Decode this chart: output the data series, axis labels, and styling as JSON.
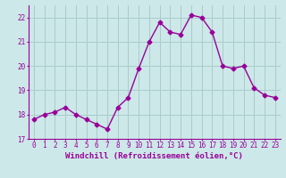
{
  "x": [
    0,
    1,
    2,
    3,
    4,
    5,
    6,
    7,
    8,
    9,
    10,
    11,
    12,
    13,
    14,
    15,
    16,
    17,
    18,
    19,
    20,
    21,
    22,
    23
  ],
  "y": [
    17.8,
    18.0,
    18.1,
    18.3,
    18.0,
    17.8,
    17.6,
    17.4,
    18.3,
    18.7,
    19.9,
    21.0,
    21.8,
    21.4,
    21.3,
    22.1,
    22.0,
    21.4,
    20.0,
    19.9,
    20.0,
    19.1,
    18.8,
    18.7
  ],
  "color": "#990099",
  "bg_color": "#cce8e8",
  "grid_color": "#aacccc",
  "xlabel": "Windchill (Refroidissement éolien,°C)",
  "ylim": [
    17,
    22.5
  ],
  "xlim": [
    -0.5,
    23.5
  ],
  "yticks": [
    17,
    18,
    19,
    20,
    21,
    22
  ],
  "xticks": [
    0,
    1,
    2,
    3,
    4,
    5,
    6,
    7,
    8,
    9,
    10,
    11,
    12,
    13,
    14,
    15,
    16,
    17,
    18,
    19,
    20,
    21,
    22,
    23
  ],
  "tick_fontsize": 5.5,
  "xlabel_fontsize": 6.5,
  "marker_size": 2.5,
  "line_width": 1.0
}
